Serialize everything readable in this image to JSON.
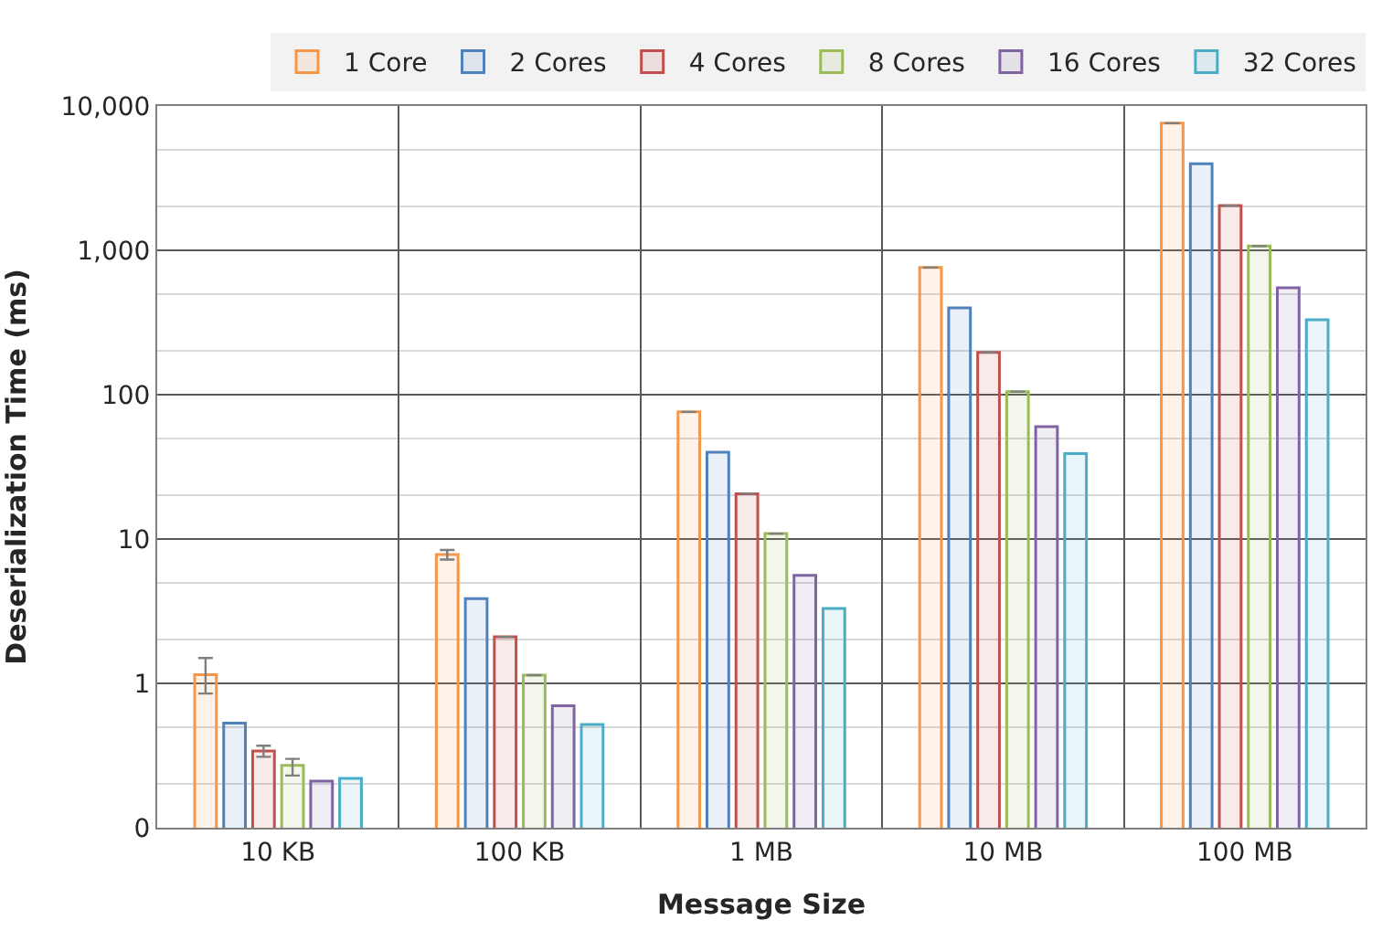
{
  "chart_data": {
    "type": "bar",
    "xlabel": "Message Size",
    "ylabel": "Deserialization Time (ms)",
    "categories": [
      "10 KB",
      "100 KB",
      "1 MB",
      "10 MB",
      "100 MB"
    ],
    "series": [
      {
        "name": "1 Core",
        "color": "#f79646",
        "values": [
          1.15,
          7.8,
          76,
          760,
          7600
        ],
        "errors": [
          [
            0.85,
            1.5
          ],
          [
            7.2,
            8.4
          ],
          null,
          null,
          null
        ]
      },
      {
        "name": "2 Cores",
        "color": "#4f81bd",
        "values": [
          0.53,
          3.86,
          40,
          400,
          3980
        ]
      },
      {
        "name": "4 Cores",
        "color": "#c0504d",
        "values": [
          0.34,
          2.1,
          20.6,
          196,
          2040
        ],
        "errors": [
          [
            0.31,
            0.37
          ],
          null,
          null,
          null,
          null
        ]
      },
      {
        "name": "8 Cores",
        "color": "#9bbb59",
        "values": [
          0.27,
          1.14,
          10.9,
          105,
          1070
        ],
        "errors": [
          [
            0.23,
            0.3
          ],
          null,
          null,
          null,
          null
        ]
      },
      {
        "name": "16 Cores",
        "color": "#8064a2",
        "values": [
          0.21,
          0.7,
          5.6,
          60,
          550
        ]
      },
      {
        "name": "32 Cores",
        "color": "#4bacc6",
        "values": [
          0.22,
          0.52,
          3.3,
          39,
          330
        ]
      }
    ],
    "log": true,
    "ylim": [
      0.1,
      10000
    ],
    "yticks": [
      {
        "value": 0.1,
        "label": "0"
      },
      1,
      10,
      100,
      {
        "value": 1000,
        "label": "1,000"
      },
      {
        "value": 10000,
        "label": "10,000"
      }
    ],
    "grid": true,
    "legend": "top right"
  }
}
